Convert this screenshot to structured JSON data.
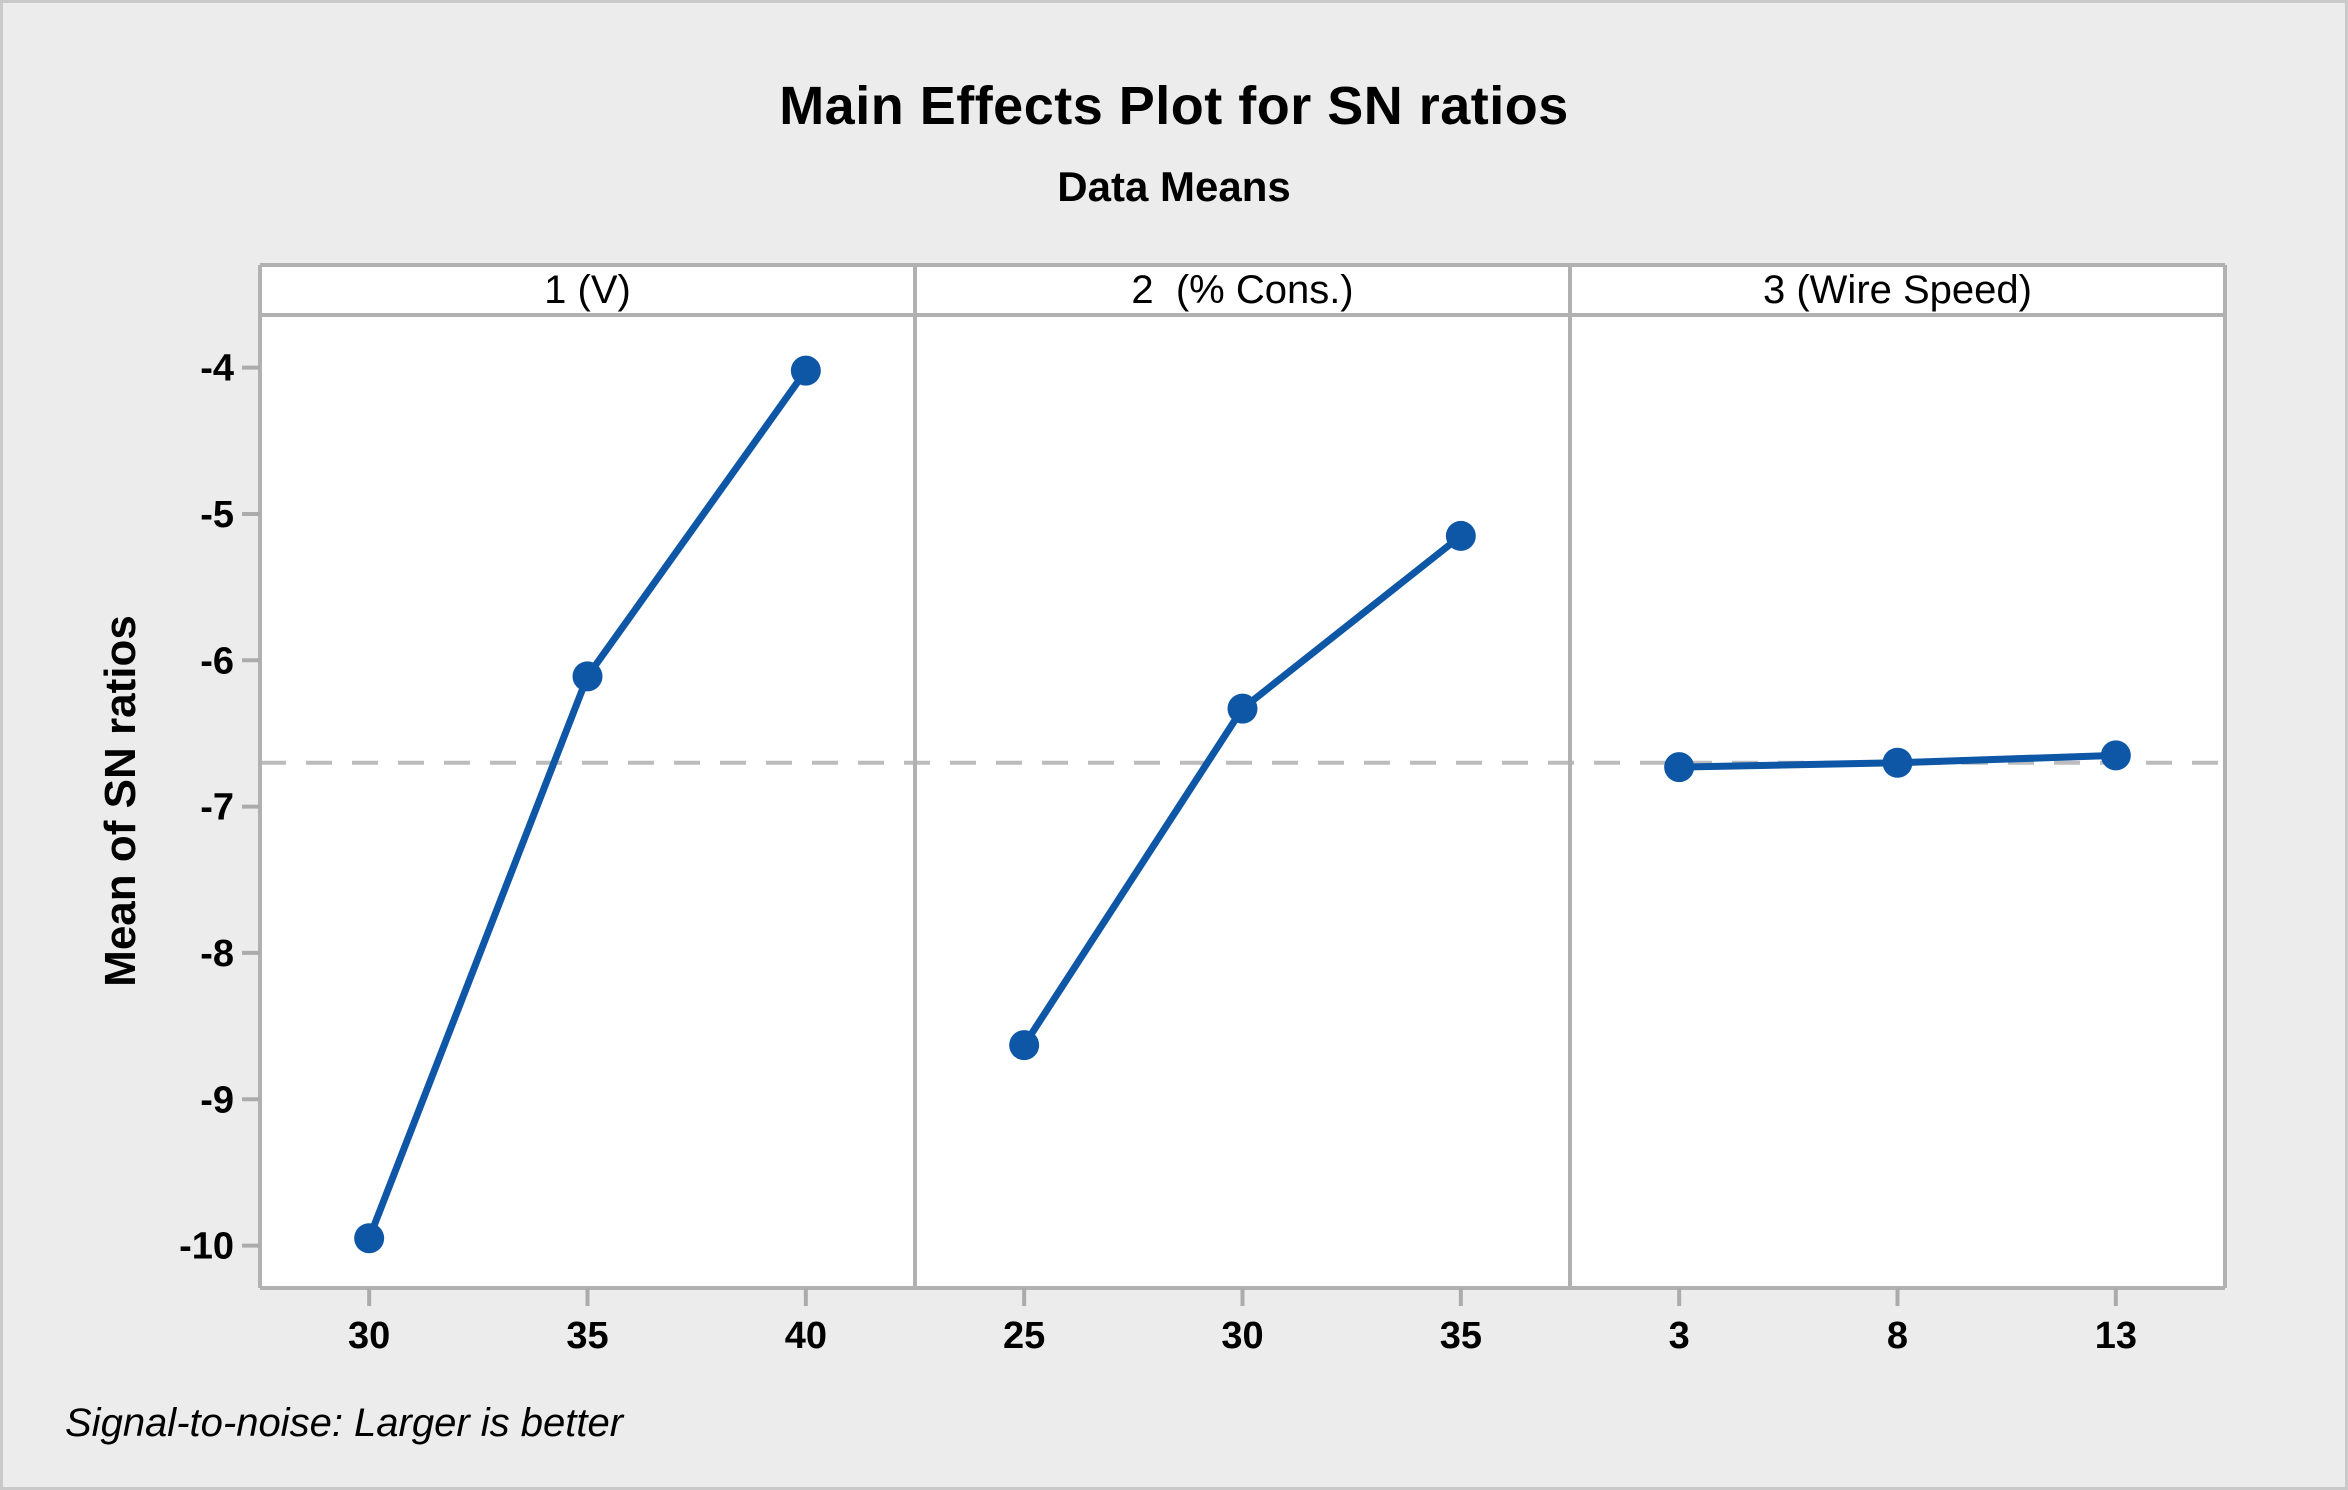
{
  "chart_data": {
    "type": "line",
    "title": "Main Effects Plot for SN ratios",
    "subtitle": "Data Means",
    "ylabel": "Mean of SN ratios",
    "footnote": "Signal-to-noise: Larger is better",
    "ylim": [
      -10.29,
      -3.64
    ],
    "yticks": [
      {
        "value": -4,
        "label": "-4"
      },
      {
        "value": -5,
        "label": "-5"
      },
      {
        "value": -6,
        "label": "-6"
      },
      {
        "value": -7,
        "label": "-7"
      },
      {
        "value": -8,
        "label": "-8"
      },
      {
        "value": -9,
        "label": "-9"
      },
      {
        "value": -10,
        "label": "-10"
      }
    ],
    "reference_line": -6.7,
    "panels": [
      {
        "label": "1 (V)",
        "categories": [
          "30",
          "35",
          "40"
        ],
        "values": [
          -9.95,
          -6.11,
          -4.02
        ]
      },
      {
        "label": "2  (% Cons.)",
        "categories": [
          "25",
          "30",
          "35"
        ],
        "values": [
          -8.63,
          -6.33,
          -5.15
        ]
      },
      {
        "label": "3 (Wire Speed)",
        "categories": [
          "3",
          "8",
          "13"
        ],
        "values": [
          -6.73,
          -6.7,
          -6.65
        ]
      }
    ],
    "grid": false,
    "legend": "none",
    "marker": "circle"
  },
  "colors": {
    "figure_background": "#ECECEC",
    "panel_background": "#FFFFFF",
    "axis_line": "#B1B1B1",
    "tick_mark": "#ABABAB",
    "reference_dash": "#BCBCBC",
    "series_blue": "#0E56A6",
    "text": "#000000"
  }
}
